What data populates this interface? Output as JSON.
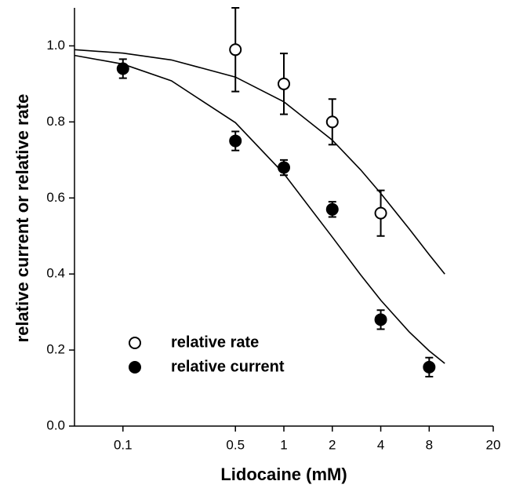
{
  "chart_data": {
    "type": "scatter",
    "x_label": "Lidocaine (mM)",
    "y_label": "relative current or relative rate",
    "xscale": "log",
    "xlim": [
      0.05,
      20
    ],
    "xticks": [
      0.1,
      0.5,
      1,
      2,
      4,
      8,
      20
    ],
    "ylim": [
      0,
      1.1
    ],
    "yticks": [
      {
        "value": 0,
        "label": "0.0"
      },
      0.2,
      0.4,
      0.6,
      0.8,
      {
        "value": 1,
        "label": "1.0"
      }
    ],
    "series": [
      {
        "name": "relative rate",
        "marker": "open",
        "color": "#000000",
        "x": [
          0.5,
          1,
          2,
          4
        ],
        "values": [
          0.99,
          0.9,
          0.8,
          0.56
        ],
        "errors": [
          0.11,
          0.08,
          0.06,
          0.06
        ]
      },
      {
        "name": "relative current",
        "marker": "filled",
        "color": "#000000",
        "x": [
          0.1,
          0.5,
          1,
          2,
          4,
          8
        ],
        "values": [
          0.94,
          0.75,
          0.68,
          0.57,
          0.28,
          0.155
        ],
        "errors": [
          0.025,
          0.025,
          0.02,
          0.02,
          0.025,
          0.025
        ]
      }
    ],
    "fits": [
      {
        "x": [
          0.05,
          0.1,
          0.2,
          0.5,
          1,
          2,
          3,
          4,
          6,
          8,
          10
        ],
        "values": [
          0.99,
          0.981,
          0.963,
          0.918,
          0.853,
          0.752,
          0.674,
          0.612,
          0.519,
          0.451,
          0.4
        ]
      },
      {
        "x": [
          0.05,
          0.1,
          0.2,
          0.5,
          1,
          2,
          3,
          4,
          6,
          8,
          10
        ],
        "values": [
          0.975,
          0.952,
          0.908,
          0.798,
          0.664,
          0.497,
          0.398,
          0.331,
          0.248,
          0.198,
          0.165
        ]
      }
    ]
  }
}
